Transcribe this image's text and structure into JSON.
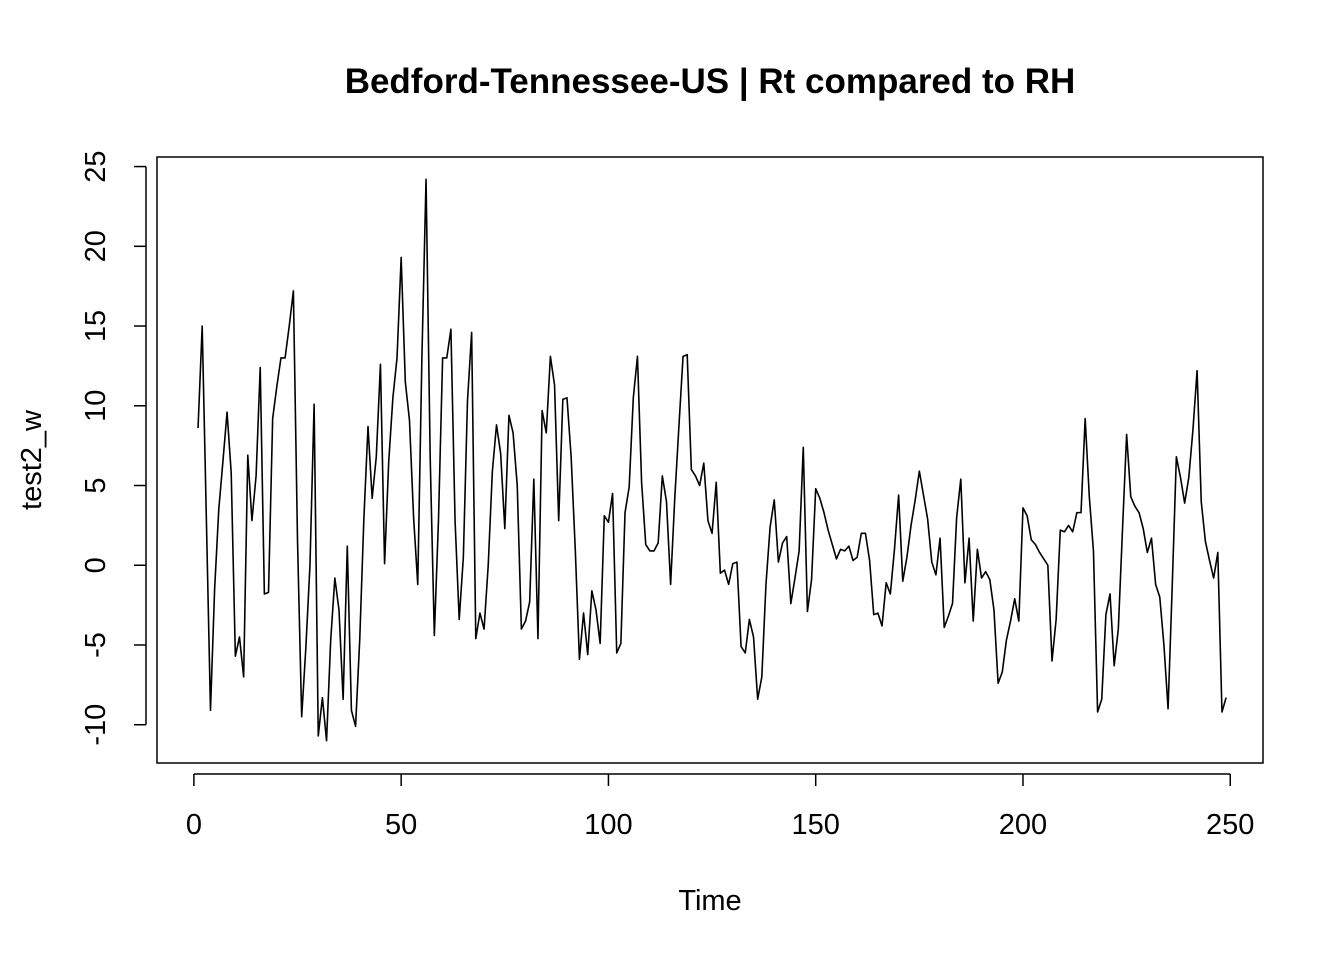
{
  "chart_data": {
    "type": "line",
    "title": "Bedford-Tennessee-US | Rt compared to RH",
    "xlabel": "Time",
    "ylabel": "test2_w",
    "xlim": [
      -8.9,
      257.9
    ],
    "ylim": [
      -12.4,
      25.6
    ],
    "x_ticks": [
      0,
      50,
      100,
      150,
      200,
      250
    ],
    "y_ticks": [
      -10,
      -5,
      0,
      5,
      10,
      15,
      20,
      25
    ],
    "series": [
      {
        "name": "test2_w",
        "color": "#000000",
        "x_start": 1,
        "values": [
          8.6,
          15.0,
          3.0,
          -9.1,
          -1.5,
          3.5,
          6.5,
          9.6,
          5.8,
          -5.7,
          -4.5,
          -7.0,
          6.9,
          2.8,
          5.6,
          12.4,
          -1.8,
          -1.7,
          9.2,
          11.2,
          13.0,
          13.0,
          15.0,
          17.2,
          1.5,
          -9.5,
          -5.2,
          0.0,
          10.1,
          -10.7,
          -8.3,
          -11.0,
          -4.7,
          -0.8,
          -2.8,
          -8.4,
          1.2,
          -9.1,
          -10.1,
          -4.7,
          2.9,
          8.7,
          4.2,
          6.8,
          12.6,
          0.1,
          6.5,
          10.5,
          13.0,
          19.3,
          11.5,
          9.1,
          3.0,
          -1.2,
          13.0,
          24.2,
          6.8,
          -4.4,
          2.8,
          13.0,
          13.0,
          14.8,
          2.8,
          -3.4,
          0.5,
          10.3,
          14.6,
          -4.6,
          -3.0,
          -4.0,
          0.0,
          5.9,
          8.8,
          7.0,
          2.3,
          9.4,
          8.3,
          5.0,
          -4.0,
          -3.5,
          -2.3,
          5.4,
          -4.6,
          9.7,
          8.3,
          13.1,
          11.3,
          2.8,
          10.4,
          10.5,
          6.8,
          1.0,
          -5.9,
          -3.0,
          -5.6,
          -1.6,
          -2.8,
          -4.9,
          3.1,
          2.7,
          4.5,
          -5.5,
          -4.9,
          3.3,
          4.9,
          10.5,
          13.1,
          5.2,
          1.3,
          0.9,
          0.9,
          1.4,
          5.6,
          4.0,
          -1.2,
          4.2,
          8.7,
          13.1,
          13.2,
          6.0,
          5.6,
          5.0,
          6.4,
          2.8,
          2.0,
          5.2,
          -0.5,
          -0.3,
          -1.2,
          0.1,
          0.2,
          -5.1,
          -5.5,
          -3.4,
          -4.5,
          -8.4,
          -7.0,
          -1.2,
          2.4,
          4.1,
          0.2,
          1.4,
          1.8,
          -2.4,
          -0.8,
          0.9,
          7.4,
          -2.9,
          -0.9,
          4.8,
          4.2,
          3.3,
          2.2,
          1.3,
          0.4,
          1.0,
          0.9,
          1.2,
          0.3,
          0.5,
          2.0,
          2.0,
          0.3,
          -3.1,
          -3.0,
          -3.8,
          -1.1,
          -1.8,
          1.0,
          4.4,
          -1.0,
          0.5,
          2.5,
          4.1,
          5.9,
          4.4,
          2.9,
          0.2,
          -0.6,
          1.7,
          -3.9,
          -3.2,
          -2.4,
          3.0,
          5.4,
          -1.1,
          1.7,
          -3.5,
          1.0,
          -0.8,
          -0.4,
          -0.9,
          -2.8,
          -7.4,
          -6.7,
          -4.7,
          -3.5,
          -2.1,
          -3.5,
          3.6,
          3.1,
          1.6,
          1.3,
          0.8,
          0.4,
          0.0,
          -6.0,
          -3.4,
          2.2,
          2.1,
          2.5,
          2.1,
          3.3,
          3.3,
          9.2,
          4.3,
          0.9,
          -9.2,
          -8.4,
          -3.1,
          -1.8,
          -6.3,
          -4.0,
          2.2,
          8.2,
          4.3,
          3.7,
          3.3,
          2.3,
          0.8,
          1.7,
          -1.2,
          -2.0,
          -5.0,
          -9.0,
          -1.3,
          6.8,
          5.5,
          3.9,
          5.5,
          8.5,
          12.2,
          4.0,
          1.5,
          0.3,
          -0.8,
          0.8,
          -9.2,
          -8.3
        ]
      }
    ]
  }
}
